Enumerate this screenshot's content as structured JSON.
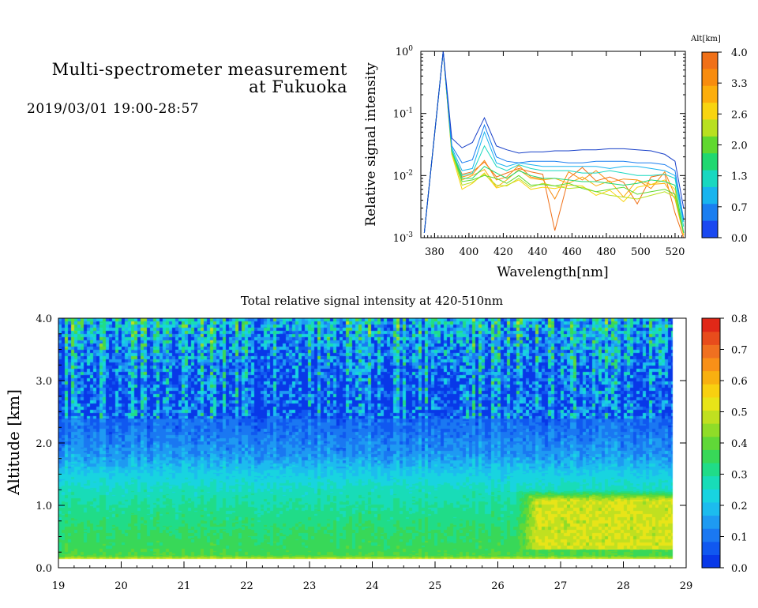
{
  "header": {
    "title_line1": "Multi-spectrometer measurement",
    "title_line2": "at Fukuoka",
    "date_range": "2019/03/01 19:00-28:57"
  },
  "chart_data": [
    {
      "type": "line",
      "xlabel": "Wavelength[nm]",
      "ylabel": "Relative signal intensity",
      "xlim": [
        372,
        526
      ],
      "ylim": [
        0.001,
        1
      ],
      "yscale": "log",
      "x_ticks": [
        380,
        400,
        420,
        440,
        460,
        480,
        500,
        520
      ],
      "y_ticks": [
        {
          "base": "10",
          "exp": "0",
          "value": 1
        },
        {
          "base": "10",
          "exp": "-1",
          "value": 0.1
        },
        {
          "base": "10",
          "exp": "-2",
          "value": 0.01
        },
        {
          "base": "10",
          "exp": "-3",
          "value": 0.001
        }
      ],
      "colorbar": {
        "label": "Alt[km]",
        "ticks": [
          "4.0",
          "3.3",
          "2.6",
          "2.0",
          "1.3",
          "0.7",
          "0.0"
        ],
        "colors": [
          "#f07018",
          "#f88c0e",
          "#fcae0c",
          "#f8d410",
          "#b8e020",
          "#60d830",
          "#20d870",
          "#18d8c0",
          "#18b4ee",
          "#1a7ef0",
          "#1a48f0"
        ]
      },
      "x": [
        374,
        385,
        390,
        396,
        402,
        409,
        416,
        422,
        429,
        436,
        443,
        450,
        458,
        466,
        474,
        482,
        490,
        498,
        506,
        514,
        520,
        525
      ],
      "series": [
        {
          "color": "#1840c8",
          "values": [
            0.0012,
            1.0,
            0.04,
            0.028,
            0.034,
            0.085,
            0.03,
            0.026,
            0.023,
            0.024,
            0.024,
            0.025,
            0.025,
            0.026,
            0.026,
            0.027,
            0.027,
            0.026,
            0.025,
            0.022,
            0.017,
            0.003
          ]
        },
        {
          "color": "#1a7ef0",
          "values": [
            0.0012,
            1.0,
            0.03,
            0.016,
            0.018,
            0.065,
            0.02,
            0.017,
            0.016,
            0.017,
            0.017,
            0.017,
            0.016,
            0.016,
            0.017,
            0.017,
            0.017,
            0.016,
            0.016,
            0.015,
            0.012,
            0.002
          ]
        },
        {
          "color": "#18b4ee",
          "values": [
            0.0012,
            1.0,
            0.028,
            0.012,
            0.013,
            0.05,
            0.016,
            0.014,
            0.016,
            0.015,
            0.014,
            0.014,
            0.014,
            0.014,
            0.014,
            0.013,
            0.014,
            0.014,
            0.013,
            0.012,
            0.01,
            0.0018
          ]
        },
        {
          "color": "#18d8c0",
          "values": [
            0.0012,
            1.0,
            0.026,
            0.01,
            0.011,
            0.03,
            0.014,
            0.012,
            0.015,
            0.013,
            0.012,
            0.012,
            0.012,
            0.011,
            0.011,
            0.012,
            0.011,
            0.01,
            0.01,
            0.0105,
            0.009,
            0.0015
          ]
        },
        {
          "color": "#20d870",
          "values": [
            0.0012,
            1.0,
            0.025,
            0.009,
            0.009,
            0.014,
            0.011,
            0.009,
            0.012,
            0.01,
            0.009,
            0.009,
            0.0085,
            0.008,
            0.008,
            0.0075,
            0.007,
            0.0075,
            0.0085,
            0.008,
            0.007,
            0.0012
          ]
        },
        {
          "color": "#60d830",
          "values": [
            0.0012,
            1.0,
            0.025,
            0.008,
            0.0085,
            0.01,
            0.009,
            0.0075,
            0.01,
            0.007,
            0.0072,
            0.0068,
            0.0075,
            0.0062,
            0.0055,
            0.006,
            0.0065,
            0.005,
            0.0055,
            0.006,
            0.005,
            0.0012
          ]
        },
        {
          "color": "#b8e020",
          "values": [
            0.0012,
            1.0,
            0.024,
            0.007,
            0.0078,
            0.0105,
            0.007,
            0.0068,
            0.009,
            0.0065,
            0.0075,
            0.0068,
            0.0062,
            0.0065,
            0.0055,
            0.0048,
            0.0045,
            0.0042,
            0.0048,
            0.0055,
            0.0045,
            0.0012
          ]
        },
        {
          "color": "#f8d410",
          "values": [
            0.0012,
            1.0,
            0.022,
            0.006,
            0.0075,
            0.011,
            0.0063,
            0.007,
            0.0085,
            0.006,
            0.0065,
            0.0062,
            0.007,
            0.0068,
            0.0048,
            0.0058,
            0.0038,
            0.0065,
            0.0072,
            0.0085,
            0.006,
            0.0011
          ]
        },
        {
          "color": "#fcae0c",
          "values": [
            0.0012,
            1.0,
            0.022,
            0.0085,
            0.01,
            0.0125,
            0.0065,
            0.0085,
            0.0125,
            0.009,
            0.0085,
            0.009,
            0.0075,
            0.0095,
            0.0068,
            0.0082,
            0.0045,
            0.0085,
            0.0072,
            0.0075,
            0.0042,
            0.0011
          ]
        },
        {
          "color": "#f88c0e",
          "values": [
            0.0012,
            1.0,
            0.024,
            0.0095,
            0.0105,
            0.0175,
            0.0085,
            0.0095,
            0.0145,
            0.0095,
            0.0088,
            0.0042,
            0.0115,
            0.0085,
            0.012,
            0.0078,
            0.0088,
            0.0085,
            0.0062,
            0.0115,
            0.0048,
            0.0011
          ]
        },
        {
          "color": "#f07018",
          "values": [
            0.0012,
            1.0,
            0.025,
            0.0105,
            0.0115,
            0.0165,
            0.0095,
            0.011,
            0.013,
            0.0115,
            0.0105,
            0.0013,
            0.009,
            0.0135,
            0.0082,
            0.0095,
            0.0078,
            0.0035,
            0.0095,
            0.0105,
            0.0025,
            0.001
          ]
        }
      ]
    },
    {
      "type": "heatmap",
      "title": "Total relative signal intensity at 420-510nm",
      "xlabel": "",
      "ylabel": "Altitude [km]",
      "xlim": [
        19,
        29
      ],
      "ylim": [
        0,
        4
      ],
      "x_ticks": [
        "19",
        "20",
        "21",
        "22",
        "23",
        "24",
        "25",
        "26",
        "27",
        "28",
        "29"
      ],
      "y_ticks": [
        "0.0",
        "1.0",
        "2.0",
        "3.0",
        "4.0"
      ],
      "colorbar": {
        "ticks": [
          "0.8",
          "0.7",
          "0.6",
          "0.5",
          "0.4",
          "0.3",
          "0.2",
          "0.1",
          "0.0"
        ],
        "min": 0,
        "max": 0.8,
        "colors": [
          "#0838e8",
          "#1058f0",
          "#1a78f2",
          "#1e9af2",
          "#1cbcee",
          "#18d4e0",
          "#18dcb8",
          "#20dc88",
          "#38d858",
          "#60d838",
          "#90dc28",
          "#c0e020",
          "#e8e418",
          "#f8d010",
          "#f8b010",
          "#f89018",
          "#f07020",
          "#e84c1c",
          "#e02818"
        ]
      },
      "data_extent": {
        "x_end": 28.78,
        "z_min": 0.15
      },
      "mean_profile": {
        "altitude": [
          0.15,
          0.2,
          0.3,
          0.6,
          1.0,
          1.3,
          1.6,
          1.8,
          2.2,
          2.6,
          3.0,
          3.4,
          3.8,
          4.0
        ],
        "value": [
          0.5,
          0.38,
          0.36,
          0.34,
          0.3,
          0.26,
          0.2,
          0.15,
          0.1,
          0.08,
          0.09,
          0.13,
          0.2,
          0.22
        ]
      },
      "high_region": {
        "x_start": 26.3,
        "x_end": 28.78,
        "alt_min": 0.3,
        "alt_max": 1.25,
        "value": 0.5
      },
      "missing_value_note": ""
    }
  ]
}
